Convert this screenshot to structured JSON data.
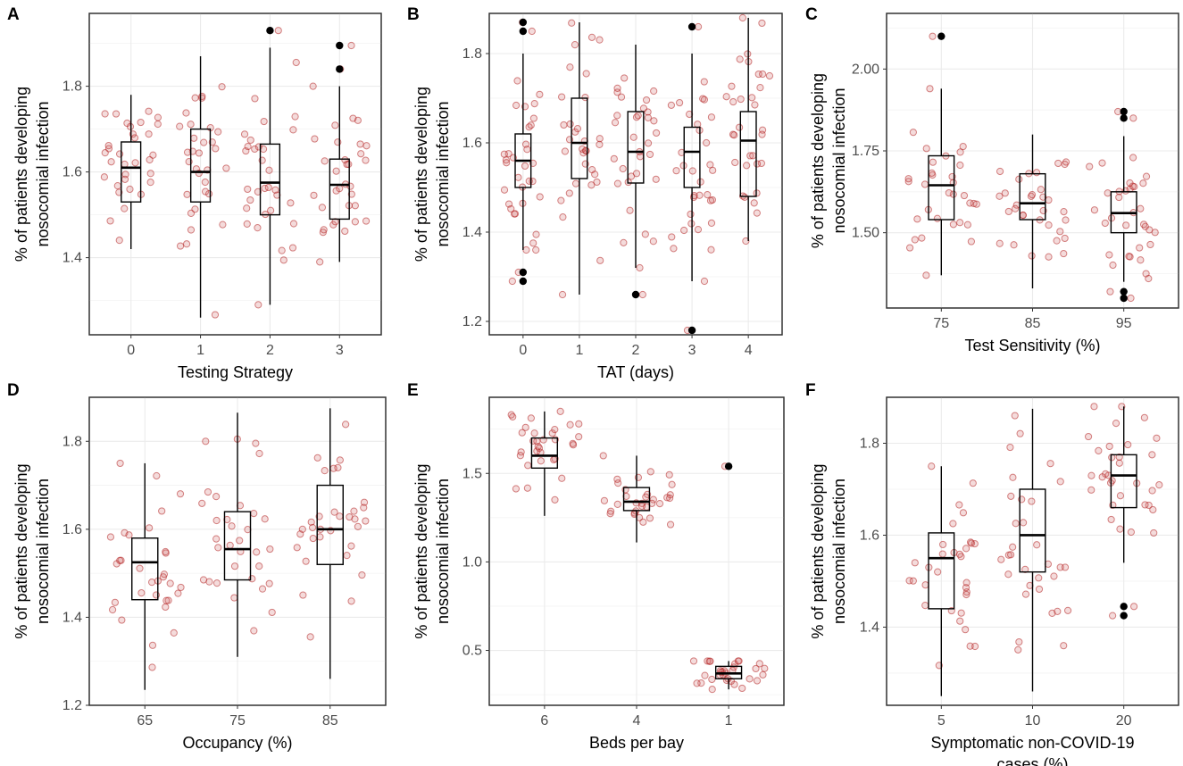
{
  "chart_data": [
    {
      "id": "A",
      "panel_label": "A",
      "type": "boxplot",
      "xlabel": "Testing Strategy",
      "ylabel": [
        "% of patients developing",
        "nosocomial infection"
      ],
      "categories": [
        "0",
        "1",
        "2",
        "3"
      ],
      "ylim": [
        1.22,
        1.97
      ],
      "yticks": [
        1.4,
        1.6,
        1.8
      ],
      "ytick_labels": [
        "1.4",
        "1.6",
        "1.8"
      ],
      "boxes": [
        {
          "q1": 1.53,
          "median": 1.61,
          "q3": 1.67,
          "whisker_low": 1.42,
          "whisker_high": 1.78,
          "outliers": []
        },
        {
          "q1": 1.53,
          "median": 1.6,
          "q3": 1.7,
          "whisker_low": 1.26,
          "whisker_high": 1.87,
          "outliers": []
        },
        {
          "q1": 1.5,
          "median": 1.575,
          "q3": 1.665,
          "whisker_low": 1.29,
          "whisker_high": 1.89,
          "outliers": [
            1.93
          ]
        },
        {
          "q1": 1.49,
          "median": 1.57,
          "q3": 1.63,
          "whisker_low": 1.39,
          "whisker_high": 1.8,
          "outliers": [
            1.84,
            1.895
          ]
        }
      ]
    },
    {
      "id": "B",
      "panel_label": "B",
      "type": "boxplot",
      "xlabel": "TAT (days)",
      "ylabel": [
        "% of patients developing",
        "nosocomial infection"
      ],
      "categories": [
        "0",
        "1",
        "2",
        "3",
        "4"
      ],
      "ylim": [
        1.17,
        1.89
      ],
      "yticks": [
        1.2,
        1.4,
        1.6,
        1.8
      ],
      "ytick_labels": [
        "1.2",
        "1.4",
        "1.6",
        "1.8"
      ],
      "boxes": [
        {
          "q1": 1.5,
          "median": 1.56,
          "q3": 1.62,
          "whisker_low": 1.36,
          "whisker_high": 1.8,
          "outliers": [
            1.29,
            1.31,
            1.85,
            1.87
          ]
        },
        {
          "q1": 1.52,
          "median": 1.6,
          "q3": 1.7,
          "whisker_low": 1.26,
          "whisker_high": 1.87,
          "outliers": []
        },
        {
          "q1": 1.51,
          "median": 1.58,
          "q3": 1.67,
          "whisker_low": 1.32,
          "whisker_high": 1.82,
          "outliers": [
            1.26
          ]
        },
        {
          "q1": 1.5,
          "median": 1.58,
          "q3": 1.635,
          "whisker_low": 1.29,
          "whisker_high": 1.8,
          "outliers": [
            1.18,
            1.86
          ]
        },
        {
          "q1": 1.48,
          "median": 1.605,
          "q3": 1.67,
          "whisker_low": 1.38,
          "whisker_high": 1.88,
          "outliers": []
        }
      ]
    },
    {
      "id": "C",
      "panel_label": "C",
      "type": "boxplot",
      "xlabel": "Test Sensitivity (%)",
      "ylabel": [
        "% of patients developing",
        "nosocomial infection"
      ],
      "categories": [
        "75",
        "85",
        "95"
      ],
      "ylim": [
        1.27,
        2.17
      ],
      "yticks": [
        1.5,
        1.75,
        2.0
      ],
      "ytick_labels": [
        "1.50",
        "1.75",
        "2.00"
      ],
      "boxes": [
        {
          "q1": 1.54,
          "median": 1.645,
          "q3": 1.735,
          "whisker_low": 1.37,
          "whisker_high": 1.94,
          "outliers": [
            2.1
          ]
        },
        {
          "q1": 1.54,
          "median": 1.59,
          "q3": 1.68,
          "whisker_low": 1.33,
          "whisker_high": 1.8,
          "outliers": []
        },
        {
          "q1": 1.5,
          "median": 1.56,
          "q3": 1.625,
          "whisker_low": 1.35,
          "whisker_high": 1.795,
          "outliers": [
            1.3,
            1.32,
            1.85,
            1.87
          ]
        }
      ]
    },
    {
      "id": "D",
      "panel_label": "D",
      "type": "boxplot",
      "xlabel": "Occupancy (%)",
      "ylabel": [
        "% of patients developing",
        "nosocomial infection"
      ],
      "categories": [
        "65",
        "75",
        "85"
      ],
      "ylim": [
        1.2,
        1.9
      ],
      "yticks": [
        1.2,
        1.4,
        1.6,
        1.8
      ],
      "ytick_labels": [
        "1.2",
        "1.4",
        "1.6",
        "1.8"
      ],
      "boxes": [
        {
          "q1": 1.44,
          "median": 1.525,
          "q3": 1.58,
          "whisker_low": 1.235,
          "whisker_high": 1.75,
          "outliers": []
        },
        {
          "q1": 1.485,
          "median": 1.555,
          "q3": 1.64,
          "whisker_low": 1.31,
          "whisker_high": 1.865,
          "outliers": []
        },
        {
          "q1": 1.52,
          "median": 1.6,
          "q3": 1.7,
          "whisker_low": 1.26,
          "whisker_high": 1.875,
          "outliers": []
        }
      ]
    },
    {
      "id": "E",
      "panel_label": "E",
      "type": "boxplot",
      "xlabel": "Beds per bay",
      "ylabel": [
        "% of patients developing",
        "nosocomial infection"
      ],
      "categories": [
        "6",
        "4",
        "1"
      ],
      "ylim": [
        0.19,
        1.93
      ],
      "yticks": [
        0.5,
        1.0,
        1.5
      ],
      "ytick_labels": [
        "0.5",
        "1.0",
        "1.5"
      ],
      "boxes": [
        {
          "q1": 1.53,
          "median": 1.6,
          "q3": 1.7,
          "whisker_low": 1.26,
          "whisker_high": 1.85,
          "outliers": []
        },
        {
          "q1": 1.29,
          "median": 1.34,
          "q3": 1.42,
          "whisker_low": 1.11,
          "whisker_high": 1.6,
          "outliers": []
        },
        {
          "q1": 0.34,
          "median": 0.37,
          "q3": 0.41,
          "whisker_low": 0.28,
          "whisker_high": 0.44,
          "outliers": [
            1.54
          ]
        }
      ]
    },
    {
      "id": "F",
      "panel_label": "F",
      "type": "boxplot",
      "xlabel": [
        "Symptomatic non-COVID-19",
        "cases (%)"
      ],
      "ylabel": [
        "% of patients developing",
        "nosocomial infection"
      ],
      "categories": [
        "5",
        "10",
        "20"
      ],
      "ylim": [
        1.23,
        1.9
      ],
      "yticks": [
        1.4,
        1.6,
        1.8
      ],
      "ytick_labels": [
        "1.4",
        "1.6",
        "1.8"
      ],
      "boxes": [
        {
          "q1": 1.44,
          "median": 1.55,
          "q3": 1.605,
          "whisker_low": 1.25,
          "whisker_high": 1.75,
          "outliers": []
        },
        {
          "q1": 1.52,
          "median": 1.6,
          "q3": 1.7,
          "whisker_low": 1.26,
          "whisker_high": 1.875,
          "outliers": []
        },
        {
          "q1": 1.66,
          "median": 1.73,
          "q3": 1.775,
          "whisker_low": 1.54,
          "whisker_high": 1.88,
          "outliers": [
            1.425,
            1.445
          ]
        }
      ]
    }
  ]
}
